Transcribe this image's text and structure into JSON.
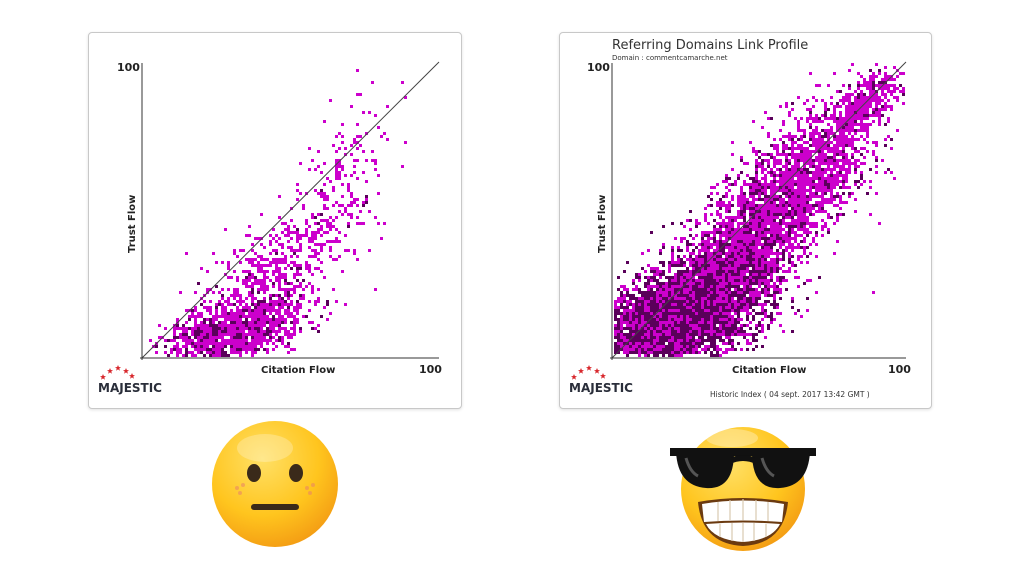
{
  "chart_data": [
    {
      "type": "scatter",
      "title": "",
      "subtitle": "",
      "xlabel": "Citation Flow",
      "ylabel": "Trust Flow",
      "xlim": [
        0,
        100
      ],
      "ylim": [
        0,
        100
      ],
      "x_max_label": "100",
      "y_max_label": "100",
      "diagonal": true,
      "grid": false,
      "brand": "MAJESTIC",
      "footer": "",
      "point_color": "#cc00cc",
      "dense_color": "#5a005a",
      "clusters": [
        {
          "cx": 30,
          "cy": 8,
          "sx": 12,
          "sy": 7,
          "rho": 0.55,
          "n": 1400,
          "dense": 0.25
        },
        {
          "cx": 45,
          "cy": 30,
          "sx": 15,
          "sy": 14,
          "rho": 0.75,
          "n": 550,
          "dense": 0.05
        },
        {
          "cx": 68,
          "cy": 62,
          "sx": 9,
          "sy": 12,
          "rho": 0.4,
          "n": 110,
          "dense": 0.0
        }
      ],
      "points": [
        [
          88,
          88
        ],
        [
          63,
          87
        ],
        [
          72,
          79
        ],
        [
          70,
          52
        ],
        [
          80,
          40
        ],
        [
          78,
          23
        ]
      ]
    },
    {
      "type": "scatter",
      "title": "Referring Domains Link Profile",
      "subtitle": "Domain : commentcamarche.net",
      "xlabel": "Citation Flow",
      "ylabel": "Trust Flow",
      "xlim": [
        0,
        100
      ],
      "ylim": [
        0,
        100
      ],
      "x_max_label": "100",
      "y_max_label": "100",
      "diagonal": true,
      "grid": false,
      "brand": "MAJESTIC",
      "footer": "Historic Index ( 04 sept. 2017 13:42 GMT )",
      "point_color": "#cc00cc",
      "dense_color": "#5a005a",
      "clusters": [
        {
          "cx": 22,
          "cy": 13,
          "sx": 14,
          "sy": 10,
          "rho": 0.5,
          "n": 5200,
          "dense": 0.55
        },
        {
          "cx": 45,
          "cy": 38,
          "sx": 14,
          "sy": 16,
          "rho": 0.7,
          "n": 2600,
          "dense": 0.25
        },
        {
          "cx": 66,
          "cy": 62,
          "sx": 13,
          "sy": 15,
          "rho": 0.65,
          "n": 1400,
          "dense": 0.1
        },
        {
          "cx": 86,
          "cy": 86,
          "sx": 6,
          "sy": 6,
          "rho": 0.7,
          "n": 350,
          "dense": 0.1
        }
      ],
      "points": [
        [
          60,
          83
        ],
        [
          96,
          60
        ],
        [
          90,
          45
        ],
        [
          88,
          22
        ]
      ]
    }
  ],
  "emoji": {
    "left": "neutral-face",
    "right": "sunglasses-grin-face"
  },
  "colors": {
    "emoji_yellow": "#ffcc22",
    "emoji_orange": "#f7a21b"
  }
}
